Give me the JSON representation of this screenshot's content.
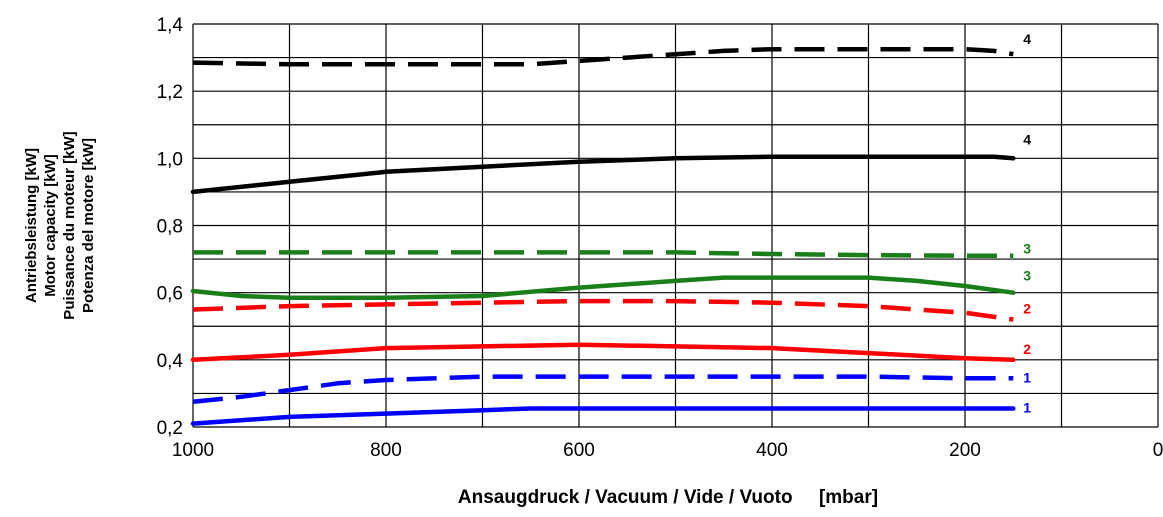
{
  "chart_data": {
    "type": "line",
    "xlabel": "Ansaugdruck / Vacuum / Vide / Vuoto     [mbar]",
    "ylabel_lines": [
      "Antriebsleistung [kW]",
      "Motor capacity [kW]",
      "Puissance du moteur [kW]",
      "Potenza del motore [kW]"
    ],
    "xlim": [
      1000,
      0
    ],
    "x_reversed": true,
    "ylim": [
      0.2,
      1.4
    ],
    "x_ticks": [
      1000,
      800,
      600,
      400,
      200,
      0
    ],
    "x_tick_labels": [
      "1000",
      "800",
      "600",
      "400",
      "200",
      "0"
    ],
    "x_gridlines": [
      1000,
      900,
      800,
      700,
      600,
      500,
      400,
      300,
      200,
      100,
      0
    ],
    "y_ticks": [
      0.2,
      0.4,
      0.6,
      0.8,
      1.0,
      1.2,
      1.4
    ],
    "y_tick_labels": [
      "0,2",
      "0,4",
      "0,6",
      "0,8",
      "1,0",
      "1,2",
      "1,4"
    ],
    "y_gridlines": [
      0.2,
      0.3,
      0.4,
      0.5,
      0.6,
      0.7,
      0.8,
      0.9,
      1.0,
      1.1,
      1.2,
      1.3,
      1.4
    ],
    "grid": true,
    "legend": "none",
    "series": [
      {
        "label": "4",
        "color": "#000000",
        "style": "dashed",
        "x": [
          1000,
          900,
          800,
          700,
          650,
          600,
          550,
          500,
          450,
          400,
          300,
          200,
          170,
          150
        ],
        "y": [
          1.285,
          1.28,
          1.28,
          1.28,
          1.28,
          1.29,
          1.3,
          1.31,
          1.32,
          1.325,
          1.325,
          1.325,
          1.32,
          1.31
        ]
      },
      {
        "label": "4",
        "color": "#000000",
        "style": "solid",
        "x": [
          1000,
          900,
          800,
          700,
          600,
          500,
          400,
          300,
          200,
          170,
          150
        ],
        "y": [
          0.9,
          0.93,
          0.96,
          0.975,
          0.99,
          1.0,
          1.005,
          1.005,
          1.005,
          1.005,
          1.0
        ]
      },
      {
        "label": "3",
        "color": "#1a7f1a",
        "style": "dashed",
        "x": [
          1000,
          900,
          800,
          700,
          600,
          500,
          400,
          300,
          200,
          150
        ],
        "y": [
          0.72,
          0.72,
          0.72,
          0.72,
          0.72,
          0.72,
          0.715,
          0.712,
          0.71,
          0.71
        ]
      },
      {
        "label": "3",
        "color": "#1a7f1a",
        "style": "solid",
        "x": [
          1000,
          950,
          900,
          800,
          700,
          600,
          500,
          450,
          400,
          300,
          250,
          200,
          150
        ],
        "y": [
          0.605,
          0.59,
          0.585,
          0.585,
          0.59,
          0.615,
          0.635,
          0.645,
          0.645,
          0.645,
          0.635,
          0.62,
          0.6
        ]
      },
      {
        "label": "2",
        "color": "#ff0000",
        "style": "dashed",
        "x": [
          1000,
          900,
          800,
          700,
          600,
          500,
          400,
          300,
          250,
          200,
          150
        ],
        "y": [
          0.55,
          0.56,
          0.565,
          0.57,
          0.575,
          0.575,
          0.57,
          0.56,
          0.55,
          0.54,
          0.52
        ]
      },
      {
        "label": "2",
        "color": "#ff0000",
        "style": "solid",
        "x": [
          1000,
          900,
          800,
          700,
          600,
          500,
          400,
          300,
          200,
          150
        ],
        "y": [
          0.4,
          0.415,
          0.435,
          0.44,
          0.445,
          0.44,
          0.435,
          0.42,
          0.405,
          0.4
        ]
      },
      {
        "label": "1",
        "color": "#0000ff",
        "style": "dashed",
        "x": [
          1000,
          950,
          900,
          850,
          800,
          700,
          600,
          500,
          400,
          300,
          200,
          150
        ],
        "y": [
          0.275,
          0.29,
          0.31,
          0.33,
          0.34,
          0.35,
          0.35,
          0.35,
          0.35,
          0.35,
          0.345,
          0.345
        ]
      },
      {
        "label": "1",
        "color": "#0000ff",
        "style": "solid",
        "x": [
          1000,
          900,
          800,
          700,
          650,
          600,
          500,
          400,
          300,
          200,
          150
        ],
        "y": [
          0.21,
          0.23,
          0.24,
          0.25,
          0.255,
          0.255,
          0.255,
          0.255,
          0.255,
          0.255,
          0.255
        ]
      }
    ]
  }
}
